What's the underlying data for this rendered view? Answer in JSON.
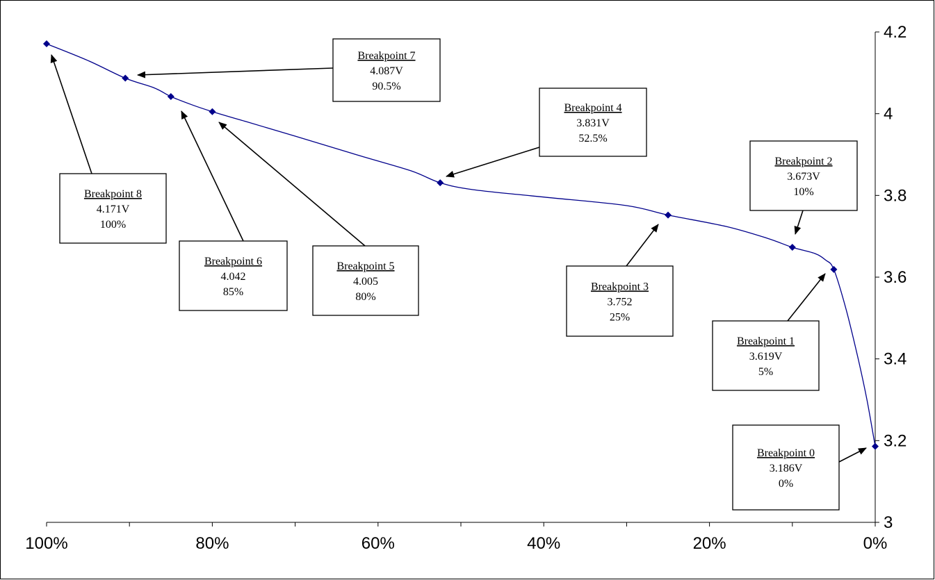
{
  "chart_data": {
    "type": "line",
    "title": "",
    "xlabel": "",
    "ylabel": "",
    "x_axis": {
      "reversed": true,
      "range": [
        0,
        100
      ],
      "ticks": [
        100,
        80,
        60,
        40,
        20,
        0
      ],
      "tick_labels": [
        "100%",
        "80%",
        "60%",
        "40%",
        "20%",
        "0%"
      ]
    },
    "y_axis": {
      "position": "right",
      "range": [
        3,
        4.2
      ],
      "ticks": [
        4.2,
        4,
        3.8,
        3.6,
        3.4,
        3.2,
        3
      ],
      "tick_labels": [
        "4.2",
        "4",
        "3.8",
        "3.6",
        "3.4",
        "3.2",
        "3"
      ]
    },
    "grid": false,
    "legend": "none",
    "series_color": "#00008B",
    "curve": [
      {
        "x": 100,
        "y": 4.171
      },
      {
        "x": 95,
        "y": 4.13
      },
      {
        "x": 90.5,
        "y": 4.087
      },
      {
        "x": 87,
        "y": 4.063
      },
      {
        "x": 85,
        "y": 4.042
      },
      {
        "x": 82.5,
        "y": 4.022
      },
      {
        "x": 80,
        "y": 4.005
      },
      {
        "x": 76,
        "y": 3.981
      },
      {
        "x": 70,
        "y": 3.945
      },
      {
        "x": 62,
        "y": 3.896
      },
      {
        "x": 56,
        "y": 3.86
      },
      {
        "x": 52.5,
        "y": 3.831
      },
      {
        "x": 48.5,
        "y": 3.814
      },
      {
        "x": 40,
        "y": 3.796
      },
      {
        "x": 30,
        "y": 3.775
      },
      {
        "x": 25,
        "y": 3.752
      },
      {
        "x": 18,
        "y": 3.724
      },
      {
        "x": 13,
        "y": 3.695
      },
      {
        "x": 10,
        "y": 3.673
      },
      {
        "x": 7.3,
        "y": 3.658
      },
      {
        "x": 6,
        "y": 3.642
      },
      {
        "x": 5,
        "y": 3.619
      },
      {
        "x": 3.5,
        "y": 3.52
      },
      {
        "x": 2,
        "y": 3.395
      },
      {
        "x": 1,
        "y": 3.3
      },
      {
        "x": 0,
        "y": 3.186
      }
    ],
    "breakpoints": [
      {
        "label": "Breakpoint 0",
        "voltage": "3.186V",
        "percent": "0%",
        "x": 0,
        "y": 3.186
      },
      {
        "label": "Breakpoint 1",
        "voltage": "3.619V",
        "percent": "5%",
        "x": 5,
        "y": 3.619
      },
      {
        "label": "Breakpoint 2",
        "voltage": "3.673V",
        "percent": "10%",
        "x": 10,
        "y": 3.673
      },
      {
        "label": "Breakpoint 3",
        "voltage": "3.752",
        "percent": "25%",
        "x": 25,
        "y": 3.752
      },
      {
        "label": "Breakpoint 4",
        "voltage": "3.831V",
        "percent": "52.5%",
        "x": 52.5,
        "y": 3.831
      },
      {
        "label": "Breakpoint 5",
        "voltage": "4.005",
        "percent": "80%",
        "x": 80,
        "y": 4.005
      },
      {
        "label": "Breakpoint 6",
        "voltage": "4.042",
        "percent": "85%",
        "x": 85,
        "y": 4.042
      },
      {
        "label": "Breakpoint 7",
        "voltage": "4.087V",
        "percent": "90.5%",
        "x": 90.5,
        "y": 4.087
      },
      {
        "label": "Breakpoint 8",
        "voltage": "4.171V",
        "percent": "100%",
        "x": 100,
        "y": 4.171
      }
    ]
  }
}
